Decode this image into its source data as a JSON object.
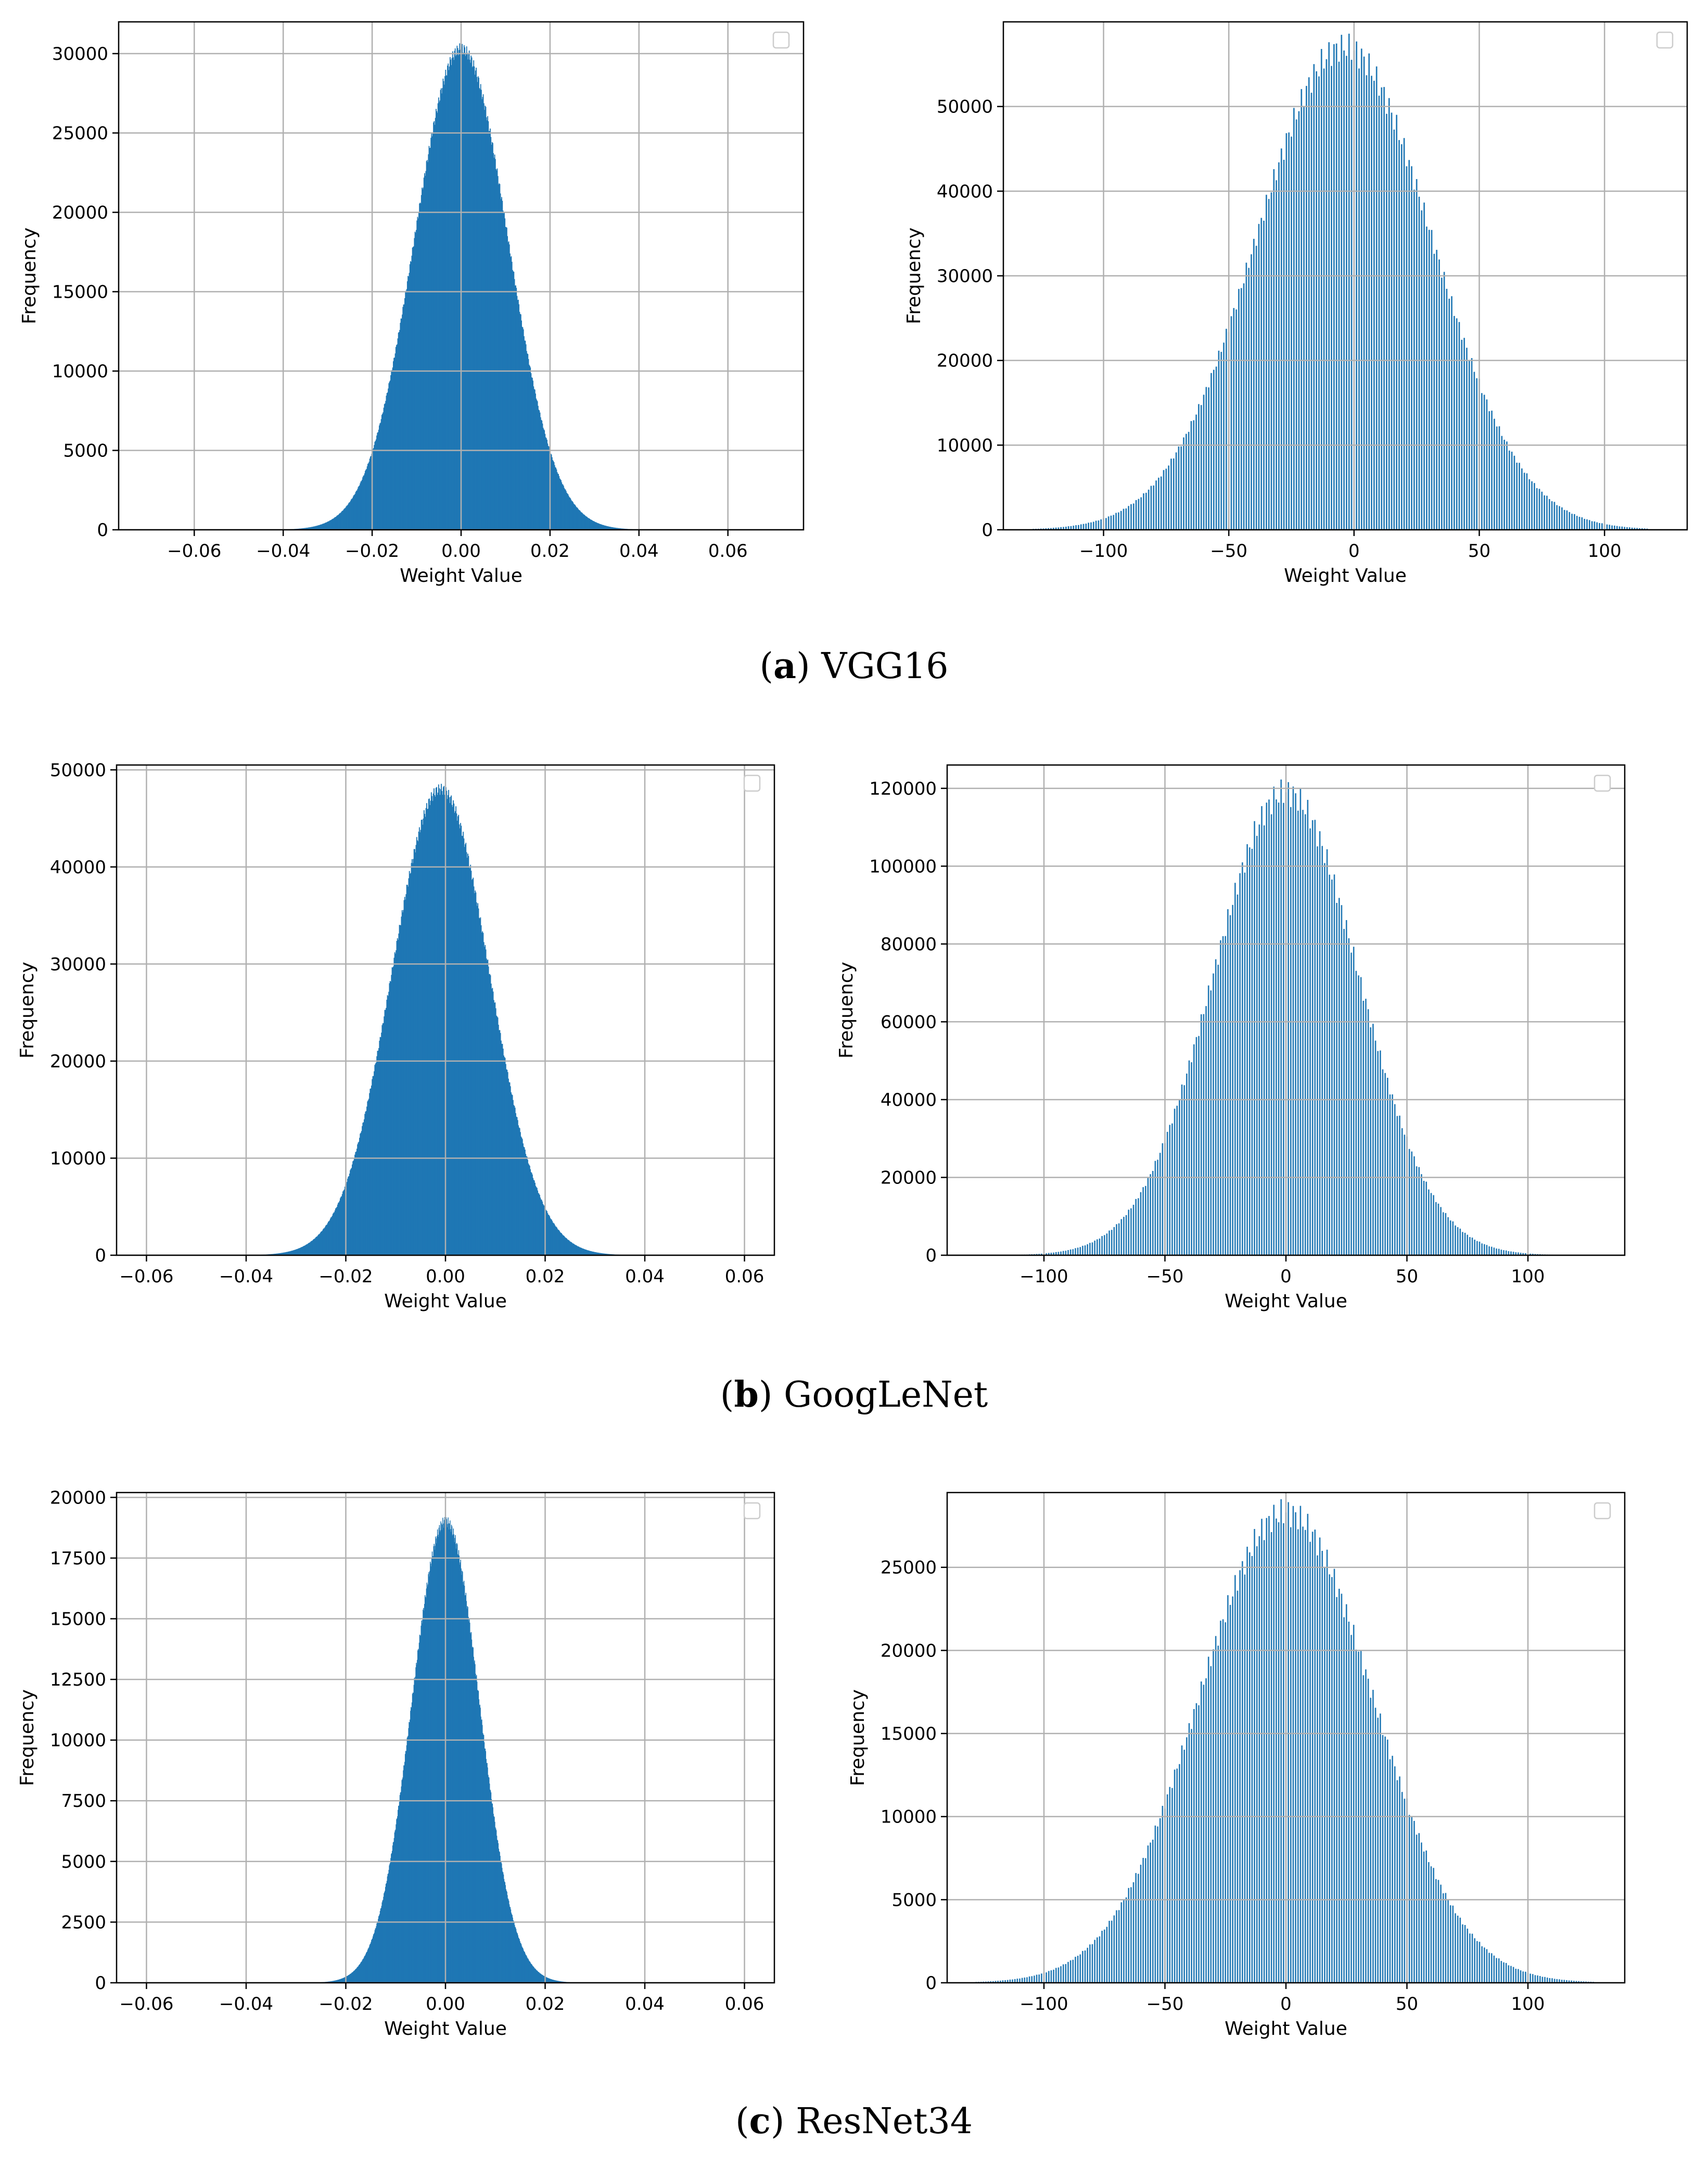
{
  "legend_placement": "upper-right (empty)",
  "bar_color": "#1f77b4",
  "grid_color": "#b0b0b0",
  "chart_data": [
    {
      "id": "vgg16-float",
      "type": "bar",
      "title": "",
      "xlabel": "Weight Value",
      "ylabel": "Frequency",
      "xlim": [
        -0.077,
        0.077
      ],
      "ylim": [
        0,
        32000
      ],
      "xticks": [
        -0.06,
        -0.04,
        -0.02,
        0.0,
        0.02,
        0.04,
        0.06
      ],
      "xtick_labels": [
        "−0.06",
        "−0.04",
        "−0.02",
        "0.00",
        "0.02",
        "0.04",
        "0.06"
      ],
      "yticks": [
        0,
        5000,
        10000,
        15000,
        20000,
        25000,
        30000
      ],
      "ytick_labels": [
        "0",
        "5000",
        "10000",
        "15000",
        "20000",
        "25000",
        "30000"
      ],
      "distribution": {
        "mean": 0.0,
        "sigma": 0.0105,
        "peak": 30300
      },
      "tails": [
        -0.044,
        0.042
      ],
      "bins": 600,
      "style": "dense",
      "grid": true
    },
    {
      "id": "vgg16-quant",
      "type": "bar",
      "title": "",
      "xlabel": "Weight Value",
      "ylabel": "Frequency",
      "xlim": [
        -140,
        133
      ],
      "ylim": [
        0,
        60000
      ],
      "xticks": [
        -100,
        -50,
        0,
        50,
        100
      ],
      "xtick_labels": [
        "−100",
        "−50",
        "0",
        "50",
        "100"
      ],
      "yticks": [
        0,
        10000,
        20000,
        30000,
        40000,
        50000
      ],
      "ytick_labels": [
        "0",
        "10000",
        "20000",
        "30000",
        "40000",
        "50000"
      ],
      "distribution": {
        "mean": -4,
        "sigma": 35,
        "peak": 57000
      },
      "tails": [
        -128,
        117
      ],
      "bins": 246,
      "style": "sparse",
      "grid": true
    },
    {
      "id": "googlenet-float",
      "type": "bar",
      "title": "",
      "xlabel": "Weight Value",
      "ylabel": "Frequency",
      "xlim": [
        -0.066,
        0.066
      ],
      "ylim": [
        0,
        50500
      ],
      "xticks": [
        -0.06,
        -0.04,
        -0.02,
        0.0,
        0.02,
        0.04,
        0.06
      ],
      "xtick_labels": [
        "−0.06",
        "−0.04",
        "−0.02",
        "0.00",
        "0.02",
        "0.04",
        "0.06"
      ],
      "yticks": [
        0,
        10000,
        20000,
        30000,
        40000,
        50000
      ],
      "ytick_labels": [
        "0",
        "10000",
        "20000",
        "30000",
        "40000",
        "50000"
      ],
      "distribution": {
        "mean": -0.001,
        "sigma": 0.0098,
        "peak": 48000
      },
      "tails": [
        -0.04,
        0.04
      ],
      "bins": 600,
      "style": "dense",
      "grid": true
    },
    {
      "id": "googlenet-quant",
      "type": "bar",
      "title": "",
      "xlabel": "Weight Value",
      "ylabel": "Frequency",
      "xlim": [
        -140,
        140
      ],
      "ylim": [
        0,
        126000
      ],
      "xticks": [
        -100,
        -50,
        0,
        50,
        100
      ],
      "xtick_labels": [
        "−100",
        "−50",
        "0",
        "50",
        "100"
      ],
      "yticks": [
        0,
        20000,
        40000,
        60000,
        80000,
        100000,
        120000
      ],
      "ytick_labels": [
        "0",
        "20000",
        "40000",
        "60000",
        "80000",
        "100000",
        "120000"
      ],
      "distribution": {
        "mean": 0,
        "sigma": 30,
        "peak": 119000
      },
      "tails": [
        -128,
        127
      ],
      "bins": 256,
      "style": "sparse",
      "grid": true
    },
    {
      "id": "resnet34-float",
      "type": "bar",
      "title": "",
      "xlabel": "Weight Value",
      "ylabel": "Frequency",
      "xlim": [
        -0.066,
        0.066
      ],
      "ylim": [
        0,
        20200
      ],
      "xticks": [
        -0.06,
        -0.04,
        -0.02,
        0.0,
        0.02,
        0.04,
        0.06
      ],
      "xtick_labels": [
        "−0.06",
        "−0.04",
        "−0.02",
        "0.00",
        "0.02",
        "0.04",
        "0.06"
      ],
      "yticks": [
        0,
        2500,
        5000,
        7500,
        10000,
        12500,
        15000,
        17500,
        20000
      ],
      "ytick_labels": [
        "0",
        "2500",
        "5000",
        "7500",
        "10000",
        "12500",
        "15000",
        "17500",
        "20000"
      ],
      "distribution": {
        "mean": 0.0,
        "sigma": 0.0068,
        "peak": 19000
      },
      "tails": [
        -0.03,
        0.028
      ],
      "bins": 600,
      "style": "dense",
      "grid": true
    },
    {
      "id": "resnet34-quant",
      "type": "bar",
      "title": "",
      "xlabel": "Weight Value",
      "ylabel": "Frequency",
      "xlim": [
        -140,
        140
      ],
      "ylim": [
        0,
        29500
      ],
      "xticks": [
        -100,
        -50,
        0,
        50,
        100
      ],
      "xtick_labels": [
        "−100",
        "−50",
        "0",
        "50",
        "100"
      ],
      "yticks": [
        0,
        5000,
        10000,
        15000,
        20000,
        25000
      ],
      "ytick_labels": [
        "0",
        "5000",
        "10000",
        "15000",
        "20000",
        "25000"
      ],
      "distribution": {
        "mean": 0,
        "sigma": 36,
        "peak": 28300
      },
      "tails": [
        -128,
        127
      ],
      "bins": 256,
      "style": "sparse",
      "grid": true
    }
  ],
  "captions": [
    {
      "letter": "a",
      "text": "VGG16"
    },
    {
      "letter": "b",
      "text": "GoogLeNet"
    },
    {
      "letter": "c",
      "text": "ResNet34"
    }
  ]
}
